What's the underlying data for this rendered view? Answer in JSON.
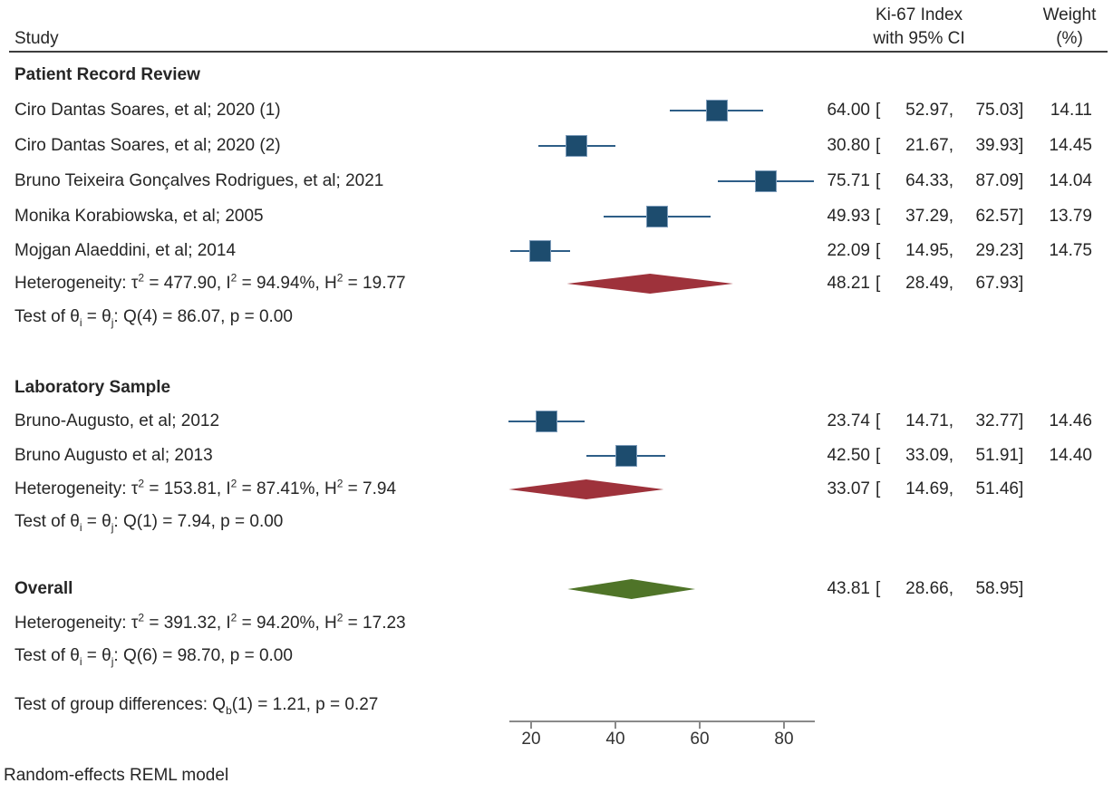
{
  "colors": {
    "study_marker": "#1d4c6e",
    "marker_border": "#7d9cba",
    "ci_line": "#2e5e87",
    "subgroup_diamond": "#9e323b",
    "overall_diamond": "#4f7428",
    "header_rule": "#3d3d3d",
    "axis": "#8a8a8a",
    "text": "#262626"
  },
  "chart_data": {
    "type": "forest",
    "columns": {
      "study": "Study",
      "effect_line1": "Ki-67 Index",
      "effect_line2": "with 95% CI",
      "weight_line1": "Weight",
      "weight_line2": "(%)"
    },
    "x_ticks": [
      20,
      40,
      60,
      80
    ],
    "x_range": [
      15,
      87
    ],
    "grid": false,
    "groups": [
      {
        "name": "Patient Record Review",
        "studies": [
          {
            "label": "Ciro Dantas Soares, et al; 2020 (1)",
            "estimate": "64.00",
            "ci_low": "52.97",
            "ci_high": "75.03",
            "weight": "14.11"
          },
          {
            "label": "Ciro Dantas Soares, et al; 2020 (2)",
            "estimate": "30.80",
            "ci_low": "21.67",
            "ci_high": "39.93",
            "weight": "14.45"
          },
          {
            "label": "Bruno Teixeira Gonçalves Rodrigues, et al; 2021",
            "estimate": "75.71",
            "ci_low": "64.33",
            "ci_high": "87.09",
            "weight": "14.04"
          },
          {
            "label": "Monika Korabiowska, et al; 2005",
            "estimate": "49.93",
            "ci_low": "37.29",
            "ci_high": "62.57",
            "weight": "13.79"
          },
          {
            "label": "Mojgan Alaeddini, et al; 2014",
            "estimate": "22.09",
            "ci_low": "14.95",
            "ci_high": "29.23",
            "weight": "14.75"
          }
        ],
        "summary": {
          "label": "Heterogeneity: τ^{2} = 477.90, I^{2} = 94.94%, H^{2} = 19.77",
          "estimate": "48.21",
          "ci_low": "28.49",
          "ci_high": "67.93"
        },
        "test": "Test of θ_{i} = θ_{j}: Q(4) = 86.07, p = 0.00"
      },
      {
        "name": "Laboratory Sample",
        "studies": [
          {
            "label": "Bruno-Augusto, et al; 2012",
            "estimate": "23.74",
            "ci_low": "14.71",
            "ci_high": "32.77",
            "weight": "14.46"
          },
          {
            "label": "Bruno Augusto et al; 2013",
            "estimate": "42.50",
            "ci_low": "33.09",
            "ci_high": "51.91",
            "weight": "14.40"
          }
        ],
        "summary": {
          "label": "Heterogeneity: τ^{2} = 153.81, I^{2} = 87.41%, H^{2} = 7.94",
          "estimate": "33.07",
          "ci_low": "14.69",
          "ci_high": "51.46"
        },
        "test": "Test of θ_{i} = θ_{j}: Q(1) = 7.94, p = 0.00"
      }
    ],
    "overall": {
      "label": "Overall",
      "estimate": "43.81",
      "ci_low": "28.66",
      "ci_high": "58.95",
      "heterogeneity": "Heterogeneity: τ^{2} = 391.32, I^{2} = 94.20%, H^{2} = 17.23",
      "test": "Test of θ_{i} = θ_{j}: Q(6) = 98.70, p = 0.00"
    },
    "group_difference_test": "Test of group differences: Q_{b}(1) = 1.21, p = 0.27",
    "model_note": "Random-effects REML model"
  }
}
